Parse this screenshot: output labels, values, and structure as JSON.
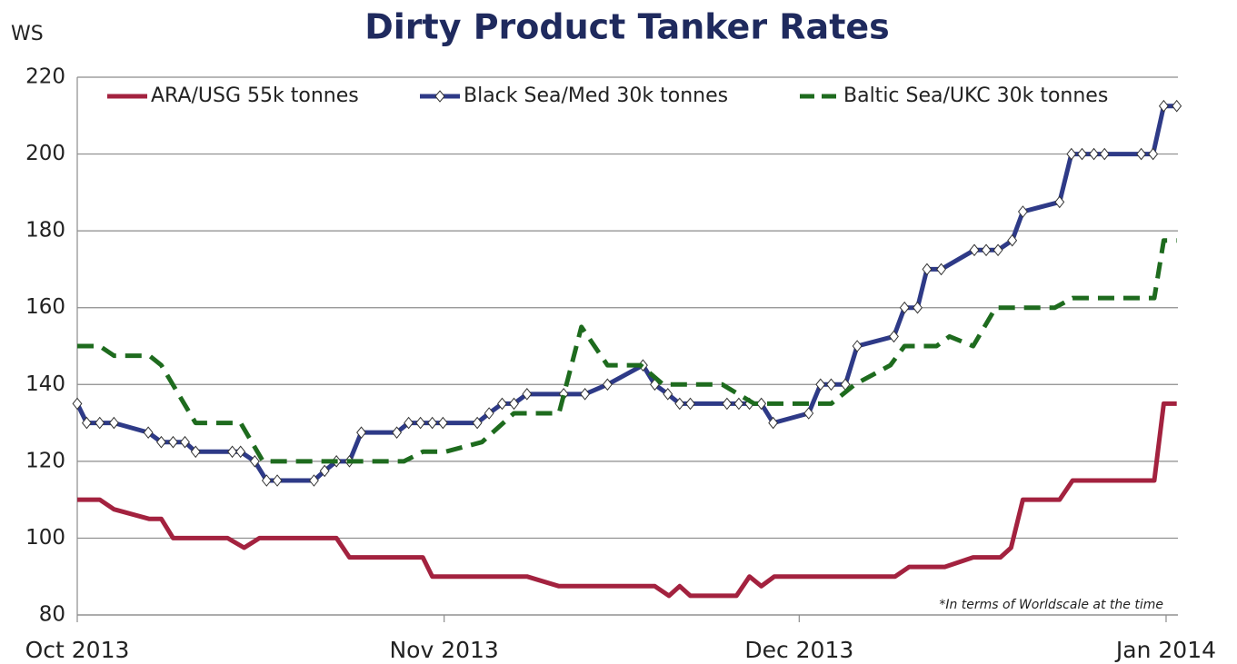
{
  "chart_data": {
    "type": "line",
    "title": "Dirty Product Tanker Rates",
    "y_label": "WS",
    "annotation": "*In terms of Worldscale at the time",
    "xlim": [
      0,
      93
    ],
    "xticks": [
      {
        "value": 0,
        "label": "Oct 2013"
      },
      {
        "value": 31,
        "label": "Nov 2013"
      },
      {
        "value": 61,
        "label": "Dec 2013"
      },
      {
        "value": 92,
        "label": "Jan 2014"
      }
    ],
    "ylim": [
      80,
      220
    ],
    "yticks": [
      80,
      100,
      120,
      140,
      160,
      180,
      200,
      220
    ],
    "grid": true,
    "legend": "top",
    "series": [
      {
        "name": "ARA/USG 55k tonnes",
        "color": "#a3223f",
        "line": "solid",
        "x": [
          0,
          1.9,
          3.1,
          6.1,
          7.1,
          8.1,
          12.7,
          14.1,
          15.4,
          21.9,
          23,
          29.2,
          30,
          38,
          40.7,
          48.8,
          50,
          50.9,
          51.8,
          55.7,
          56.8,
          57.8,
          58.9,
          69.1,
          70.3,
          73.3,
          75.7,
          78,
          78.9,
          79.9,
          83,
          84.1,
          91,
          91.8,
          92.9
        ],
        "values": [
          110,
          110,
          107.5,
          105,
          105,
          100,
          100,
          97.5,
          100,
          100,
          95,
          95,
          90,
          90,
          87.5,
          87.5,
          85,
          87.5,
          85,
          85,
          90,
          87.5,
          90,
          90,
          92.5,
          92.5,
          95,
          95,
          97.5,
          110,
          110,
          115,
          115,
          135,
          135
        ]
      },
      {
        "name": "Black Sea/Med 30k tonnes",
        "color": "#2e3a87",
        "line": "solid",
        "marker": "diamond",
        "x": [
          0,
          0.8,
          1.9,
          3.1,
          6,
          7.1,
          8.1,
          9.1,
          10,
          13.1,
          13.8,
          15,
          16,
          16.9,
          20,
          20.9,
          21.9,
          23,
          24,
          27,
          28,
          29,
          30,
          30.9,
          33.8,
          34.8,
          35.9,
          36.9,
          38,
          41.1,
          42.9,
          44.8,
          47.8,
          48.8,
          49.9,
          50.9,
          51.8,
          54.9,
          55.9,
          56.8,
          57.8,
          58.8,
          61.8,
          62.8,
          63.7,
          64.9,
          65.9,
          69,
          69.9,
          71,
          71.8,
          73,
          75.8,
          76.8,
          77.8,
          79,
          79.9,
          83,
          84,
          84.9,
          85.9,
          86.8,
          89.9,
          90.9,
          91.8,
          92.9
        ],
        "values": [
          135,
          130,
          130,
          130,
          127.5,
          125,
          125,
          125,
          122.5,
          122.5,
          122.5,
          120,
          115,
          115,
          115,
          117.5,
          120,
          120,
          127.5,
          127.5,
          130,
          130,
          130,
          130,
          130,
          132.5,
          135,
          135,
          137.5,
          137.5,
          137.5,
          140,
          145,
          140,
          137.5,
          135,
          135,
          135,
          135,
          135,
          135,
          130,
          132.5,
          140,
          140,
          140,
          150,
          152.5,
          160,
          160,
          170,
          170,
          175,
          175,
          175,
          177.5,
          185,
          187.5,
          200,
          200,
          200,
          200,
          200,
          200,
          212.5,
          212.5
        ]
      },
      {
        "name": "Baltic Sea/UKC 30k tonnes",
        "color": "#1e6b1e",
        "line": "dashed",
        "x": [
          0,
          1.9,
          3.1,
          6.1,
          7.1,
          10,
          13.8,
          15.7,
          27.6,
          29.2,
          31.1,
          34.2,
          36.9,
          40.7,
          42.6,
          44.8,
          47.6,
          49.5,
          54.5,
          57.2,
          63.7,
          65.7,
          68.7,
          69.9,
          72.6,
          73.7,
          75.7,
          77.6,
          79.9,
          82.6,
          84.1,
          91,
          91.8,
          92.9
        ],
        "values": [
          150,
          150,
          147.5,
          147.5,
          145,
          130,
          130,
          120,
          120,
          122.5,
          122.5,
          125,
          132.5,
          132.5,
          155,
          145,
          145,
          140,
          140,
          135,
          135,
          140,
          145,
          150,
          150,
          152.5,
          150,
          160,
          160,
          160,
          162.5,
          162.5,
          177.5,
          177.5
        ]
      }
    ]
  }
}
